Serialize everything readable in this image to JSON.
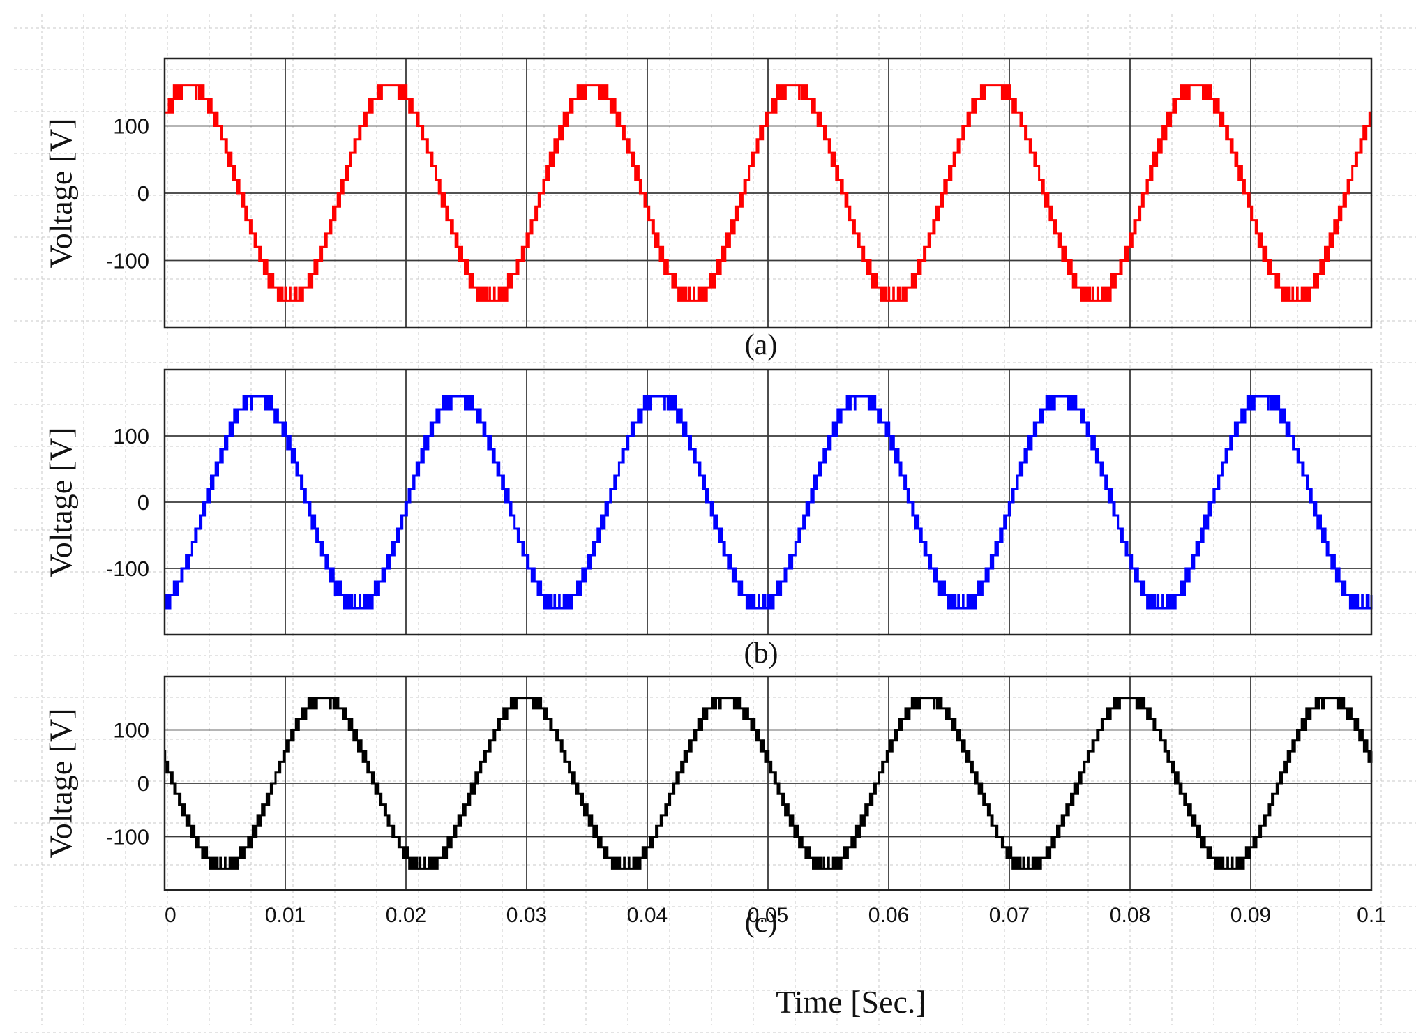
{
  "x_axis": {
    "label": "Time [Sec.]",
    "ticks": [
      "0",
      "0.01",
      "0.02",
      "0.03",
      "0.04",
      "0.05",
      "0.06",
      "0.07",
      "0.08",
      "0.09",
      "0.1"
    ]
  },
  "chart_data": [
    {
      "type": "line",
      "caption": "(a)",
      "ylabel": "Voltage [V]",
      "xlim": [
        0,
        0.1
      ],
      "ylim": [
        -200,
        200
      ],
      "yticks": [
        "100",
        "0",
        "-100"
      ],
      "ytick_values": [
        100,
        0,
        -100
      ],
      "grid": true,
      "color": "#ff0000",
      "signal": {
        "amplitude": 160,
        "frequency_hz": 60,
        "phase_deg": 45,
        "levels": 8,
        "level_step": 20
      }
    },
    {
      "type": "line",
      "caption": "(b)",
      "ylabel": "Voltage [V]",
      "xlim": [
        0,
        0.1
      ],
      "ylim": [
        -200,
        200
      ],
      "yticks": [
        "100",
        "0",
        "-100"
      ],
      "ytick_values": [
        100,
        0,
        -100
      ],
      "grid": true,
      "color": "#0000ff",
      "signal": {
        "amplitude": 160,
        "frequency_hz": 60,
        "phase_deg": -75,
        "levels": 8,
        "level_step": 20
      }
    },
    {
      "type": "line",
      "caption": "(c)",
      "ylabel": "Voltage [V]",
      "xlim": [
        0,
        0.1
      ],
      "ylim": [
        -200,
        200
      ],
      "yticks": [
        "100",
        "0",
        "-100"
      ],
      "ytick_values": [
        100,
        0,
        -100
      ],
      "grid": true,
      "color": "#000000",
      "signal": {
        "amplitude": 160,
        "frequency_hz": 60,
        "phase_deg": 165,
        "levels": 8,
        "level_step": 20
      }
    }
  ]
}
